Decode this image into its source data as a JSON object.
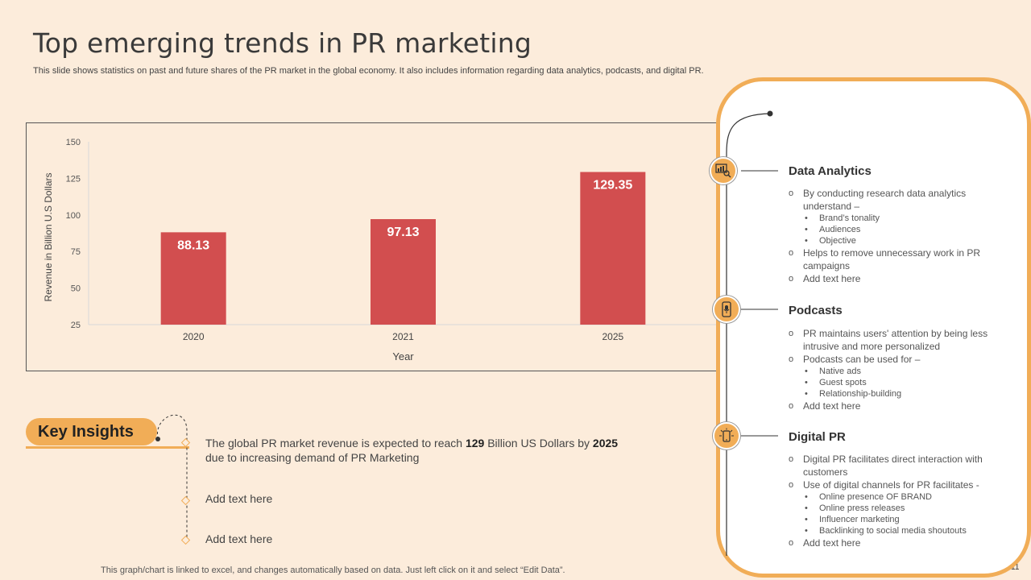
{
  "slide": {
    "title": "Top emerging trends in PR marketing",
    "subtitle": "This slide shows statistics on past and future shares of the PR market in the global economy. It also includes information regarding data analytics, podcasts, and digital PR.",
    "footer_note": "This graph/chart is linked to excel, and changes automatically based on data. Just left click on it and select “Edit Data”.",
    "page_number": "11"
  },
  "colors": {
    "bar": "#d24e4f",
    "accent": "#f1ad57",
    "background": "#fcecdb"
  },
  "chart_data": {
    "type": "bar",
    "categories": [
      "2020",
      "2021",
      "2025"
    ],
    "values": [
      88.13,
      97.13,
      129.35
    ],
    "value_labels": [
      "88.13",
      "97.13",
      "129.35"
    ],
    "title": "",
    "xlabel": "Year",
    "ylabel": "Revenue  in Billion U.S Dollars",
    "ylim": [
      25,
      150
    ],
    "yticks": [
      25,
      50,
      75,
      100,
      125,
      150
    ],
    "ytick_labels": [
      "25",
      "50",
      "75",
      "100",
      "125",
      "150"
    ],
    "grid": false,
    "legend": "none"
  },
  "insights": {
    "heading": "Key Insights",
    "item1_prefix": "The global PR market revenue is expected to reach ",
    "item1_bold1": "129",
    "item1_mid": " Billion US Dollars by ",
    "item1_bold2": "2025",
    "item1_suffix": " due to increasing demand of PR Marketing",
    "item2": "Add text here",
    "item3": "Add text here"
  },
  "panel": {
    "sections": [
      {
        "title": "Data Analytics",
        "icon": "data-analytics-icon",
        "points": [
          "By conducting research data analytics understand –",
          "Brand’s tonality",
          "Audiences",
          "Objective",
          "Helps to remove  unnecessary work in PR campaigns",
          "Add text here"
        ]
      },
      {
        "title": "Podcasts",
        "icon": "podcast-icon",
        "points": [
          "PR maintains users' attention by being less intrusive  and more personalized",
          "Podcasts can be used for –",
          "Native ads",
          "Guest spots",
          "Relationship-building",
          "Add text here"
        ]
      },
      {
        "title": "Digital PR",
        "icon": "digital-pr-icon",
        "points": [
          "Digital PR facilitates direct interaction with customers",
          "Use of digital channels for PR facilitates -",
          "Online presence OF BRAND",
          "Online press releases",
          "Influencer marketing",
          "Backlinking to social media shoutouts",
          "Add text here"
        ]
      }
    ]
  }
}
